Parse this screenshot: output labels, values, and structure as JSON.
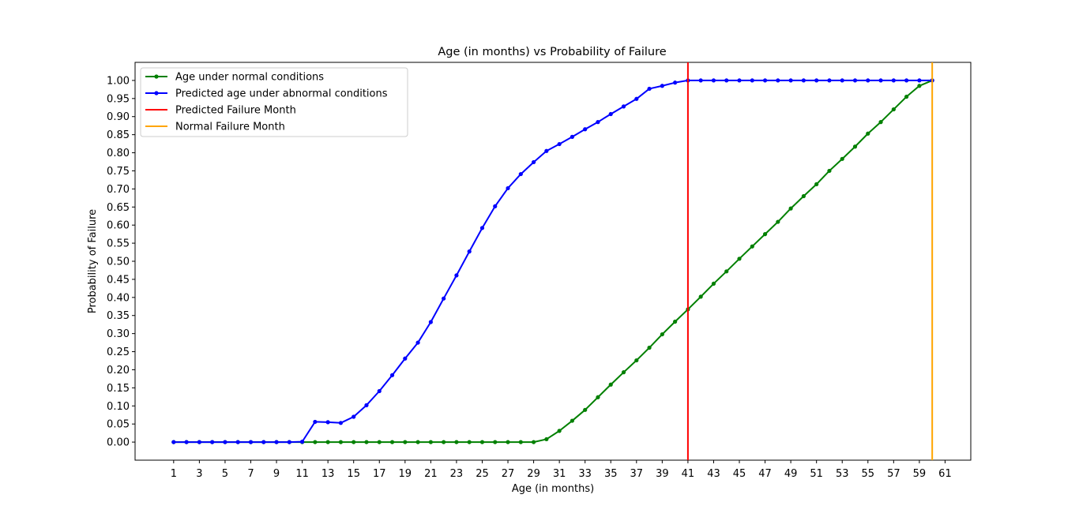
{
  "chart_data": {
    "type": "line",
    "title": "Age (in months) vs Probability of Failure",
    "xlabel": "Age (in months)",
    "ylabel": "Probability of Failure",
    "xlim": [
      -2,
      63
    ],
    "ylim": [
      -0.05,
      1.05
    ],
    "x_ticks": [
      1,
      3,
      5,
      7,
      9,
      11,
      13,
      15,
      17,
      19,
      21,
      23,
      25,
      27,
      29,
      31,
      33,
      35,
      37,
      39,
      41,
      43,
      45,
      47,
      49,
      51,
      53,
      55,
      57,
      59,
      61
    ],
    "y_ticks": [
      0.0,
      0.05,
      0.1,
      0.15,
      0.2,
      0.25,
      0.3,
      0.35,
      0.4,
      0.45,
      0.5,
      0.55,
      0.6,
      0.65,
      0.7,
      0.75,
      0.8,
      0.85,
      0.9,
      0.95,
      1.0
    ],
    "y_tick_labels": [
      "0.00",
      "0.05",
      "0.10",
      "0.15",
      "0.20",
      "0.25",
      "0.30",
      "0.35",
      "0.40",
      "0.45",
      "0.50",
      "0.55",
      "0.60",
      "0.65",
      "0.70",
      "0.75",
      "0.80",
      "0.85",
      "0.90",
      "0.95",
      "1.00"
    ],
    "grid": false,
    "legend_position": "upper-left",
    "series": [
      {
        "name": "Age under normal conditions",
        "color": "#008000",
        "marker": "dot",
        "x": [
          1,
          2,
          3,
          4,
          5,
          6,
          7,
          8,
          9,
          10,
          11,
          12,
          13,
          14,
          15,
          16,
          17,
          18,
          19,
          20,
          21,
          22,
          23,
          24,
          25,
          26,
          27,
          28,
          29,
          30,
          31,
          32,
          33,
          34,
          35,
          36,
          37,
          38,
          39,
          40,
          41,
          42,
          43,
          44,
          45,
          46,
          47,
          48,
          49,
          50,
          51,
          52,
          53,
          54,
          55,
          56,
          57,
          58,
          59,
          60
        ],
        "y": [
          0,
          0,
          0,
          0,
          0,
          0,
          0,
          0,
          0,
          0,
          0,
          0,
          0,
          0,
          0,
          0,
          0,
          0,
          0,
          0,
          0,
          0,
          0,
          0,
          0,
          0,
          0,
          0,
          0,
          0.008,
          0.031,
          0.059,
          0.089,
          0.124,
          0.159,
          0.193,
          0.226,
          0.261,
          0.298,
          0.333,
          0.367,
          0.402,
          0.438,
          0.472,
          0.507,
          0.541,
          0.575,
          0.609,
          0.646,
          0.68,
          0.713,
          0.75,
          0.783,
          0.817,
          0.853,
          0.885,
          0.92,
          0.955,
          0.985,
          1.0
        ]
      },
      {
        "name": "Predicted age under abnormal conditions",
        "color": "#0000ff",
        "marker": "dot",
        "x": [
          1,
          2,
          3,
          4,
          5,
          6,
          7,
          8,
          9,
          10,
          11,
          12,
          13,
          14,
          15,
          16,
          17,
          18,
          19,
          20,
          21,
          22,
          23,
          24,
          25,
          26,
          27,
          28,
          29,
          30,
          31,
          32,
          33,
          34,
          35,
          36,
          37,
          38,
          39,
          40,
          41,
          42,
          43,
          44,
          45,
          46,
          47,
          48,
          49,
          50,
          51,
          52,
          53,
          54,
          55,
          56,
          57,
          58,
          59,
          60
        ],
        "y": [
          0,
          0,
          0,
          0,
          0,
          0,
          0,
          0,
          0,
          0,
          0.001,
          0.056,
          0.055,
          0.053,
          0.07,
          0.102,
          0.141,
          0.185,
          0.231,
          0.275,
          0.332,
          0.397,
          0.461,
          0.527,
          0.592,
          0.652,
          0.702,
          0.741,
          0.774,
          0.805,
          0.824,
          0.844,
          0.865,
          0.885,
          0.907,
          0.928,
          0.949,
          0.977,
          0.985,
          0.994,
          1.0,
          1.0,
          1.0,
          1.0,
          1.0,
          1.0,
          1.0,
          1.0,
          1.0,
          1.0,
          1.0,
          1.0,
          1.0,
          1.0,
          1.0,
          1.0,
          1.0,
          1.0,
          1.0,
          1.0
        ]
      }
    ],
    "vlines": [
      {
        "name": "Predicted Failure Month",
        "x": 41,
        "color": "#ff0000"
      },
      {
        "name": "Normal Failure Month",
        "x": 60,
        "color": "#ffa500"
      }
    ]
  }
}
